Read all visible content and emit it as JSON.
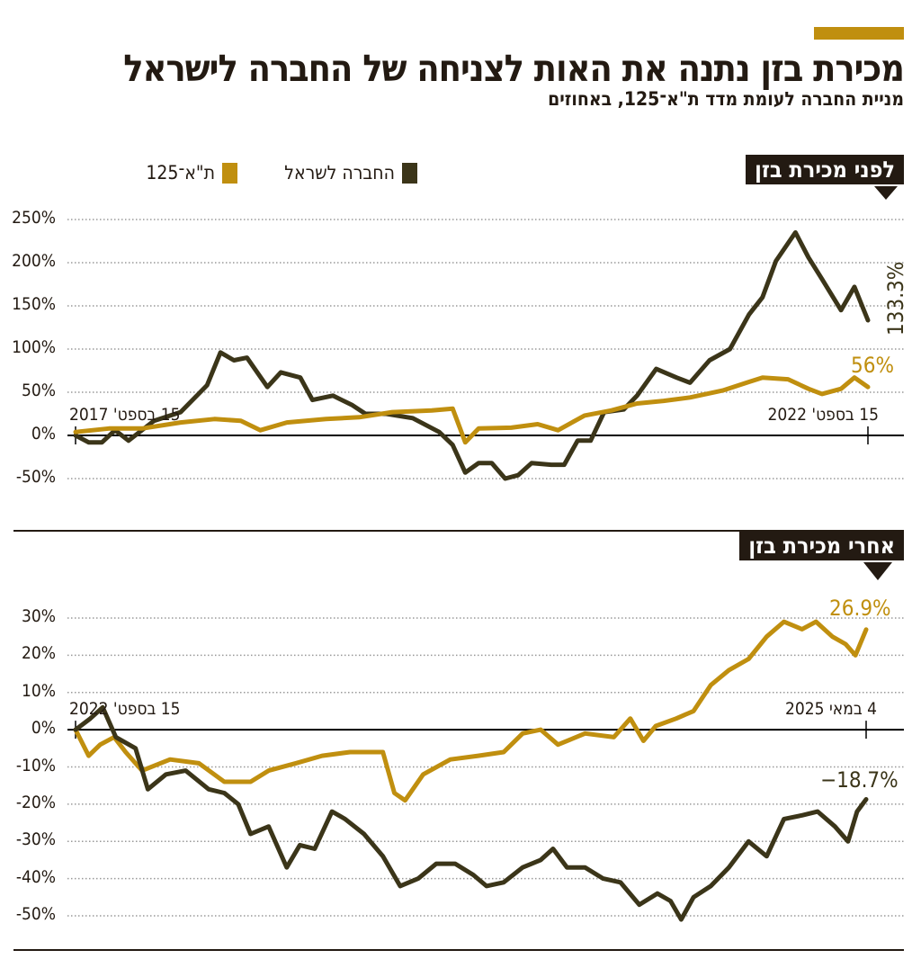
{
  "header": {
    "title": "מכירת בזן נתנה את האות לצניחה של החברה לישראל",
    "subtitle": "מניית החברה  לעומת מדד ת\"א־125, באחוזים"
  },
  "colors": {
    "company": "#3b3519",
    "index": "#c08f0f",
    "box": "#231a12",
    "accent": "#c08f0f"
  },
  "legend": [
    {
      "label": "החברה לשראל",
      "color": "#3b3519"
    },
    {
      "label": "ת\"א־125",
      "color": "#c08f0f"
    }
  ],
  "chart_data": [
    {
      "type": "line",
      "title": "לפני מכירת בזן",
      "ylim": [
        -50,
        250
      ],
      "yticks": [
        250,
        200,
        150,
        100,
        50,
        0,
        -50
      ],
      "ytick_labels": [
        "250%",
        "200%",
        "150%",
        "100%",
        "50%",
        "0%",
        "-50%"
      ],
      "xlim": [
        "2017-09-15",
        "2022-09-15"
      ],
      "x_start_label": "15 בספט' 2017",
      "x_end_label": "15 בספט' 2022",
      "grid": true,
      "series": [
        {
          "name": "החברה לשראל",
          "color": "#3b3519",
          "end_label": "133.3%",
          "points": [
            [
              "2017-09-15",
              0
            ],
            [
              "2017-10-15",
              -8
            ],
            [
              "2017-11-15",
              -8
            ],
            [
              "2017-12-15",
              6
            ],
            [
              "2018-01-15",
              -6
            ],
            [
              "2018-02-15",
              6
            ],
            [
              "2018-03-15",
              17
            ],
            [
              "2018-05-15",
              27
            ],
            [
              "2018-07-15",
              58
            ],
            [
              "2018-08-15",
              96
            ],
            [
              "2018-09-15",
              87
            ],
            [
              "2018-10-15",
              90
            ],
            [
              "2018-12-01",
              56
            ],
            [
              "2019-01-01",
              73
            ],
            [
              "2019-02-15",
              67
            ],
            [
              "2019-03-15",
              41
            ],
            [
              "2019-05-01",
              46
            ],
            [
              "2019-06-15",
              35
            ],
            [
              "2019-07-15",
              25
            ],
            [
              "2019-09-01",
              25
            ],
            [
              "2019-11-01",
              20
            ],
            [
              "2020-01-01",
              4
            ],
            [
              "2020-02-01",
              -11
            ],
            [
              "2020-03-01",
              -43
            ],
            [
              "2020-04-01",
              -32
            ],
            [
              "2020-05-01",
              -32
            ],
            [
              "2020-06-01",
              -50
            ],
            [
              "2020-07-01",
              -46
            ],
            [
              "2020-08-01",
              -32
            ],
            [
              "2020-09-15",
              -34
            ],
            [
              "2020-10-15",
              -34
            ],
            [
              "2020-11-15",
              -6
            ],
            [
              "2020-12-15",
              -6
            ],
            [
              "2021-01-15",
              27
            ],
            [
              "2021-03-01",
              30
            ],
            [
              "2021-04-01",
              46
            ],
            [
              "2021-05-15",
              77
            ],
            [
              "2021-07-01",
              67
            ],
            [
              "2021-08-01",
              61
            ],
            [
              "2021-09-15",
              87
            ],
            [
              "2021-11-01",
              100
            ],
            [
              "2021-12-15",
              140
            ],
            [
              "2022-01-15",
              160
            ],
            [
              "2022-02-15",
              202
            ],
            [
              "2022-04-01",
              235
            ],
            [
              "2022-05-01",
              206
            ],
            [
              "2022-06-01",
              181
            ],
            [
              "2022-07-15",
              145
            ],
            [
              "2022-08-15",
              172
            ],
            [
              "2022-09-15",
              133.3
            ]
          ]
        },
        {
          "name": "ת\"א־125",
          "color": "#c08f0f",
          "end_label": "56%",
          "points": [
            [
              "2017-09-15",
              4
            ],
            [
              "2017-12-01",
              8
            ],
            [
              "2018-02-15",
              8
            ],
            [
              "2018-05-15",
              15
            ],
            [
              "2018-08-01",
              19
            ],
            [
              "2018-10-01",
              17
            ],
            [
              "2018-11-15",
              6
            ],
            [
              "2019-01-15",
              15
            ],
            [
              "2019-04-15",
              19
            ],
            [
              "2019-07-01",
              21
            ],
            [
              "2019-09-15",
              27
            ],
            [
              "2019-12-15",
              29
            ],
            [
              "2020-02-01",
              31
            ],
            [
              "2020-03-01",
              -8
            ],
            [
              "2020-04-01",
              8
            ],
            [
              "2020-06-15",
              9
            ],
            [
              "2020-08-15",
              13
            ],
            [
              "2020-10-01",
              6
            ],
            [
              "2020-12-01",
              23
            ],
            [
              "2021-02-01",
              29
            ],
            [
              "2021-04-01",
              37
            ],
            [
              "2021-06-01",
              40
            ],
            [
              "2021-08-01",
              44
            ],
            [
              "2021-10-15",
              52
            ],
            [
              "2021-12-15",
              62
            ],
            [
              "2022-01-15",
              67
            ],
            [
              "2022-03-15",
              65
            ],
            [
              "2022-05-01",
              54
            ],
            [
              "2022-06-01",
              48
            ],
            [
              "2022-07-15",
              54
            ],
            [
              "2022-08-15",
              67
            ],
            [
              "2022-09-15",
              56
            ]
          ]
        }
      ]
    },
    {
      "type": "line",
      "title": "אחרי מכירת בזן",
      "ylim": [
        -50,
        30
      ],
      "yticks": [
        30,
        20,
        10,
        0,
        -10,
        -20,
        -30,
        -40,
        -50
      ],
      "ytick_labels": [
        "30%",
        "20%",
        "10%",
        "0%",
        "-10%",
        "-20%",
        "-30%",
        "-40%",
        "-50%"
      ],
      "xlim": [
        "2022-09-15",
        "2025-05-04"
      ],
      "x_start_label": "15 בספט' 2022",
      "x_end_label": "4 במאי 2025",
      "grid": true,
      "series": [
        {
          "name": "ת\"א־125",
          "color": "#c08f0f",
          "end_label": "26.9%",
          "points": [
            [
              "2022-09-15",
              0
            ],
            [
              "2022-10-01",
              -7
            ],
            [
              "2022-10-15",
              -4
            ],
            [
              "2022-11-01",
              -2
            ],
            [
              "2022-11-15",
              -6
            ],
            [
              "2022-12-05",
              -11
            ],
            [
              "2023-01-08",
              -8
            ],
            [
              "2023-02-12",
              -9
            ],
            [
              "2023-03-15",
              -14
            ],
            [
              "2023-04-16",
              -14
            ],
            [
              "2023-05-08",
              -11
            ],
            [
              "2023-06-10",
              -9
            ],
            [
              "2023-07-12",
              -7
            ],
            [
              "2023-08-15",
              -6
            ],
            [
              "2023-09-24",
              -6
            ],
            [
              "2023-10-08",
              -17
            ],
            [
              "2023-10-21",
              -19
            ],
            [
              "2023-11-12",
              -12
            ],
            [
              "2023-12-15",
              -8
            ],
            [
              "2024-01-18",
              -7
            ],
            [
              "2024-02-18",
              -6
            ],
            [
              "2024-03-12",
              -1
            ],
            [
              "2024-04-03",
              0
            ],
            [
              "2024-04-24",
              -4
            ],
            [
              "2024-05-27",
              -1
            ],
            [
              "2024-07-01",
              -2
            ],
            [
              "2024-07-21",
              3
            ],
            [
              "2024-08-06",
              -3
            ],
            [
              "2024-08-21",
              1
            ],
            [
              "2024-09-15",
              3
            ],
            [
              "2024-10-06",
              5
            ],
            [
              "2024-10-27",
              12
            ],
            [
              "2024-11-18",
              16
            ],
            [
              "2024-12-12",
              19
            ],
            [
              "2025-01-03",
              25
            ],
            [
              "2025-01-24",
              29
            ],
            [
              "2025-02-15",
              27
            ],
            [
              "2025-03-04",
              29
            ],
            [
              "2025-03-24",
              25
            ],
            [
              "2025-04-09",
              23
            ],
            [
              "2025-04-21",
              20
            ],
            [
              "2025-05-04",
              26.9
            ]
          ]
        },
        {
          "name": "החברה לשראל",
          "color": "#3b3519",
          "end_label": "−18.7%",
          "points": [
            [
              "2022-09-15",
              0
            ],
            [
              "2022-10-03",
              3
            ],
            [
              "2022-10-18",
              6
            ],
            [
              "2022-11-03",
              -2
            ],
            [
              "2022-11-27",
              -5
            ],
            [
              "2022-12-12",
              -16
            ],
            [
              "2023-01-03",
              -12
            ],
            [
              "2023-01-27",
              -11
            ],
            [
              "2023-02-24",
              -16
            ],
            [
              "2023-03-15",
              -17
            ],
            [
              "2023-04-01",
              -20
            ],
            [
              "2023-04-16",
              -28
            ],
            [
              "2023-05-08",
              -26
            ],
            [
              "2023-05-30",
              -37
            ],
            [
              "2023-06-15",
              -31
            ],
            [
              "2023-07-03",
              -32
            ],
            [
              "2023-07-24",
              -22
            ],
            [
              "2023-08-09",
              -24
            ],
            [
              "2023-09-01",
              -28
            ],
            [
              "2023-09-24",
              -34
            ],
            [
              "2023-10-15",
              -42
            ],
            [
              "2023-11-06",
              -40
            ],
            [
              "2023-11-28",
              -36
            ],
            [
              "2023-12-21",
              -36
            ],
            [
              "2024-01-12",
              -39
            ],
            [
              "2024-01-28",
              -42
            ],
            [
              "2024-02-18",
              -41
            ],
            [
              "2024-03-12",
              -37
            ],
            [
              "2024-04-03",
              -35
            ],
            [
              "2024-04-18",
              -32
            ],
            [
              "2024-05-05",
              -37
            ],
            [
              "2024-05-27",
              -37
            ],
            [
              "2024-06-18",
              -40
            ],
            [
              "2024-07-09",
              -41
            ],
            [
              "2024-08-01",
              -47
            ],
            [
              "2024-08-23",
              -44
            ],
            [
              "2024-09-08",
              -46
            ],
            [
              "2024-09-21",
              -51
            ],
            [
              "2024-10-06",
              -45
            ],
            [
              "2024-10-27",
              -42
            ],
            [
              "2024-11-18",
              -37
            ],
            [
              "2024-12-12",
              -30
            ],
            [
              "2025-01-03",
              -34
            ],
            [
              "2025-01-24",
              -24
            ],
            [
              "2025-02-15",
              -23
            ],
            [
              "2025-03-06",
              -22
            ],
            [
              "2025-03-27",
              -26
            ],
            [
              "2025-04-12",
              -30
            ],
            [
              "2025-04-23",
              -22
            ],
            [
              "2025-05-04",
              -18.7
            ]
          ]
        }
      ]
    }
  ]
}
